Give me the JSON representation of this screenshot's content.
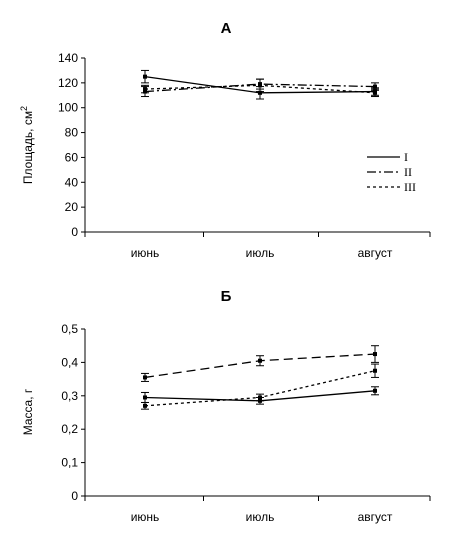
{
  "chart_data": [
    {
      "type": "line",
      "title": "А",
      "xlabel": "",
      "ylabel": "Площадь, см",
      "ylabel_sup": "2",
      "categories": [
        "июнь",
        "июль",
        "август"
      ],
      "ylim": [
        0,
        140
      ],
      "yticks": [
        "0",
        "20",
        "40",
        "60",
        "80",
        "100",
        "120",
        "140"
      ],
      "grid": false,
      "legend_position": "right",
      "series": [
        {
          "name": "I",
          "values": [
            125,
            112,
            113
          ],
          "errors": [
            5,
            5,
            3
          ],
          "style": "solid"
        },
        {
          "name": "II",
          "values": [
            113,
            119,
            117
          ],
          "errors": [
            4,
            4,
            3
          ],
          "style": "dashdot"
        },
        {
          "name": "III",
          "values": [
            115,
            118,
            112
          ],
          "errors": [
            3,
            5,
            3
          ],
          "style": "dotted"
        }
      ]
    },
    {
      "type": "line",
      "title": "Б",
      "xlabel": "",
      "ylabel": "Масса, г",
      "categories": [
        "июнь",
        "июль",
        "август"
      ],
      "ylim": [
        0,
        0.5
      ],
      "yticks": [
        "0",
        "0,1",
        "0,2",
        "0,3",
        "0,4",
        "0,5"
      ],
      "grid": false,
      "series": [
        {
          "values": [
            0.295,
            0.285,
            0.315
          ],
          "errors": [
            0.015,
            0.01,
            0.012
          ],
          "style": "solid"
        },
        {
          "values": [
            0.355,
            0.405,
            0.425
          ],
          "errors": [
            0.012,
            0.015,
            0.025
          ],
          "style": "dashed"
        },
        {
          "values": [
            0.27,
            0.295,
            0.375
          ],
          "errors": [
            0.01,
            0.01,
            0.02
          ],
          "style": "dotted"
        }
      ]
    }
  ]
}
